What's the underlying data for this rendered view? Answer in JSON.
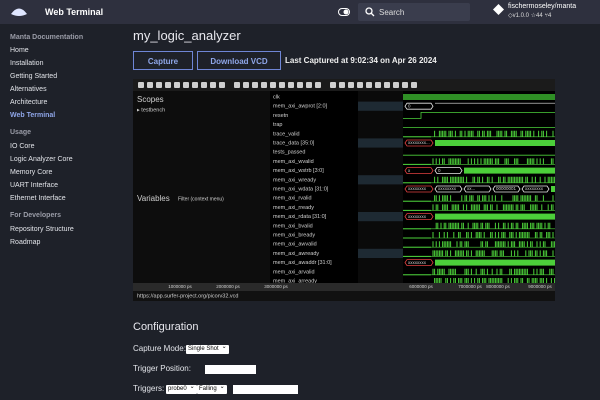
{
  "header": {
    "site_title": "Web Terminal",
    "search_placeholder": "Search",
    "repo_name": "fischermoseley/manta",
    "repo_version": "v1.0.0",
    "repo_stars": "44",
    "repo_forks": "4"
  },
  "sidebar": {
    "title": "Manta Documentation",
    "items": [
      "Home",
      "Installation",
      "Getting Started",
      "Alternatives",
      "Architecture",
      "Web Terminal"
    ],
    "sections": [
      {
        "heading": "Usage",
        "items": [
          "IO Core",
          "Logic Analyzer Core",
          "Memory Core",
          "UART Interface",
          "Ethernet Interface"
        ]
      },
      {
        "heading": "For Developers",
        "items": [
          "Repository Structure",
          "Roadmap"
        ]
      }
    ]
  },
  "main": {
    "title": "my_logic_analyzer",
    "capture_button": "Capture",
    "download_button": "Download VCD",
    "last_captured": "Last Captured at 9:02:34 on Apr 26 2024"
  },
  "viewer": {
    "scopes_label": "Scopes",
    "scope": "testbench",
    "variables_label": "Variables",
    "filter_placeholder": "Filter (context menu)",
    "signals": [
      {
        "name": "clk"
      },
      {
        "name": "mem_axi_awprot [2:0]",
        "wave_labels": [
          "0"
        ]
      },
      {
        "name": "resetn"
      },
      {
        "name": "trap"
      },
      {
        "name": "trace_valid"
      },
      {
        "name": "trace_data [35:0]",
        "wave_labels": [
          "xxxxxxxx..."
        ]
      },
      {
        "name": "tests_passed"
      },
      {
        "name": "mem_axi_wvalid"
      },
      {
        "name": "mem_axi_wstrb [3:0]",
        "wave_labels": [
          "x",
          "0"
        ]
      },
      {
        "name": "mem_axi_wready"
      },
      {
        "name": "mem_axi_wdata [31:0]",
        "wave_labels": [
          "xxxxxxxx",
          "xxxxxxxx",
          "xx...",
          "00000001",
          "xxxxxxxx"
        ]
      },
      {
        "name": "mem_axi_rvalid"
      },
      {
        "name": "mem_axi_rready"
      },
      {
        "name": "mem_axi_rdata [31:0]",
        "wave_labels": [
          "xxxxxxxx"
        ]
      },
      {
        "name": "mem_axi_bvalid"
      },
      {
        "name": "mem_axi_bready"
      },
      {
        "name": "mem_axi_awvalid"
      },
      {
        "name": "mem_axi_awready"
      },
      {
        "name": "mem_axi_awaddr [31:0]",
        "wave_labels": [
          "xxxxxxxx"
        ]
      },
      {
        "name": "mem_axi_arvalid"
      },
      {
        "name": "mem_axi_arready"
      }
    ],
    "timeline": [
      "1000000 ps",
      "2000000 ps",
      "3000000 ps",
      "6000000 ps",
      "7000000 ps",
      "8000000 ps",
      "9000000 ps"
    ],
    "url": "https://app.surfer-project.org/picorv32.vcd"
  },
  "configuration": {
    "title": "Configuration",
    "capture_mode_label": "Capture Mode:",
    "capture_mode": "Single Shot",
    "trigger_position_label": "Trigger Position:",
    "triggers_label": "Triggers:",
    "trigger_probe": "probe0",
    "trigger_condition": "Falling"
  }
}
